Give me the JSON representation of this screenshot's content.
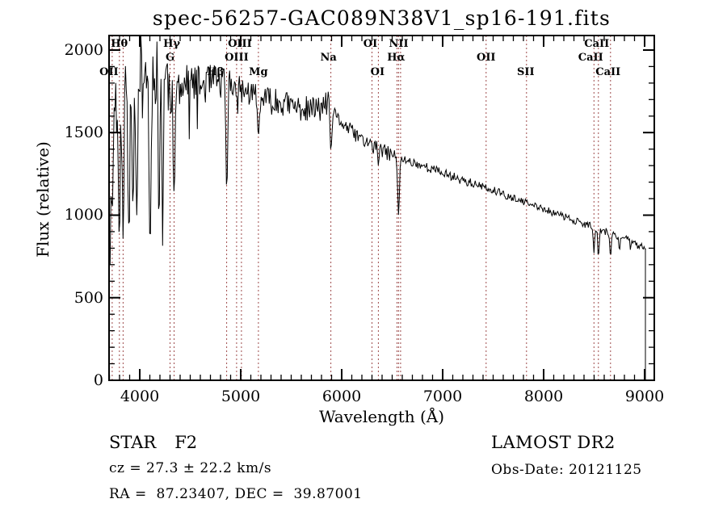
{
  "title": "spec-56257-GAC089N38V1_sp16-191.fits",
  "annotations": {
    "object_class": "STAR",
    "subclass": "F2",
    "cz_line": "cz = 27.3 ± 22.2 km/s",
    "radec_line": "RA =  87.23407, DEC =  39.87001",
    "survey": "LAMOST DR2",
    "obsdate_line": "Obs-Date: 20121125"
  },
  "chart_data": {
    "type": "line",
    "title": "spec-56257-GAC089N38V1_sp16-191.fits",
    "xlabel": "Wavelength (Å)",
    "ylabel": "Flux (relative)",
    "xlim": [
      3696,
      9096
    ],
    "ylim": [
      0,
      2088
    ],
    "grid": false,
    "line_color": "#000000",
    "marker_color": "#9e4b4b",
    "x_ticks": [
      {
        "value": 4000,
        "label": "4000"
      },
      {
        "value": 5000,
        "label": "5000"
      },
      {
        "value": 6000,
        "label": "6000"
      },
      {
        "value": 7000,
        "label": "7000"
      },
      {
        "value": 8000,
        "label": "8000"
      },
      {
        "value": 9000,
        "label": "9000"
      }
    ],
    "y_ticks": [
      {
        "value": 0,
        "label": "0"
      },
      {
        "value": 500,
        "label": "500"
      },
      {
        "value": 1000,
        "label": "1000"
      },
      {
        "value": 1500,
        "label": "1500"
      },
      {
        "value": 2000,
        "label": "2000"
      }
    ],
    "x_minor_step": 100,
    "y_minor_step": 100,
    "spectral_lines": [
      {
        "label": "OII",
        "wl": 3727,
        "row": 3,
        "dx": -4
      },
      {
        "label": "Hθ",
        "wl": 3798,
        "row": 1,
        "dx": 0
      },
      {
        "label": "",
        "wl": 3835,
        "row": 0,
        "dx": 0
      },
      {
        "label": "G",
        "wl": 4300,
        "row": 2,
        "dx": 0
      },
      {
        "label": "Hγ",
        "wl": 4340,
        "row": 1,
        "dx": -3
      },
      {
        "label": "Hβ",
        "wl": 4861,
        "row": 3,
        "dx": -14
      },
      {
        "label": "OIII",
        "wl": 4959,
        "row": 2,
        "dx": 0
      },
      {
        "label": "OIII",
        "wl": 5007,
        "row": 1,
        "dx": -2
      },
      {
        "label": "Mg",
        "wl": 5175,
        "row": 3,
        "dx": 0
      },
      {
        "label": "Na",
        "wl": 5893,
        "row": 2,
        "dx": -3
      },
      {
        "label": "OI",
        "wl": 6300,
        "row": 1,
        "dx": -2
      },
      {
        "label": "OI",
        "wl": 6363,
        "row": 3,
        "dx": -1
      },
      {
        "label": "NII",
        "wl": 6548,
        "row": 1,
        "dx": 2
      },
      {
        "label": "Hα",
        "wl": 6563,
        "row": 2,
        "dx": -3
      },
      {
        "label": "",
        "wl": 6583,
        "row": 0,
        "dx": 0
      },
      {
        "label": "OII",
        "wl": 7430,
        "row": 2,
        "dx": 0
      },
      {
        "label": "SII",
        "wl": 7830,
        "row": 3,
        "dx": -1
      },
      {
        "label": "CaII",
        "wl": 8498,
        "row": 2,
        "dx": -4
      },
      {
        "label": "CaII",
        "wl": 8542,
        "row": 1,
        "dx": -2
      },
      {
        "label": "CaII",
        "wl": 8662,
        "row": 3,
        "dx": -3
      }
    ],
    "continuum": {
      "wl": [
        3698,
        3720,
        3760,
        3800,
        3840,
        3880,
        3920,
        3960,
        4000,
        4060,
        4120,
        4180,
        4240,
        4300,
        4360,
        4420,
        4480,
        4560,
        4640,
        4720,
        4800,
        4880,
        4960,
        5040,
        5120,
        5200,
        5300,
        5400,
        5500,
        5600,
        5700,
        5800,
        5860,
        5900,
        5950,
        6000,
        6100,
        6200,
        6300,
        6400,
        6500,
        6600,
        6700,
        6800,
        6900,
        7000,
        7100,
        7200,
        7300,
        7400,
        7500,
        7600,
        7700,
        7800,
        7900,
        8000,
        8100,
        8200,
        8300,
        8400,
        8500,
        8600,
        8700,
        8800,
        8900,
        8990,
        9008
      ],
      "flux": [
        1500,
        1650,
        1700,
        1760,
        1780,
        1800,
        1820,
        1830,
        1840,
        1880,
        1900,
        1870,
        1830,
        1800,
        1780,
        1790,
        1800,
        1790,
        1790,
        1800,
        1800,
        1790,
        1770,
        1750,
        1730,
        1710,
        1690,
        1680,
        1660,
        1645,
        1640,
        1650,
        1680,
        1630,
        1590,
        1560,
        1505,
        1460,
        1420,
        1390,
        1365,
        1340,
        1320,
        1300,
        1278,
        1256,
        1234,
        1212,
        1190,
        1168,
        1146,
        1124,
        1102,
        1080,
        1058,
        1036,
        1014,
        992,
        970,
        948,
        926,
        904,
        882,
        860,
        830,
        805,
        800
      ]
    },
    "absorption_dips": [
      {
        "wl": 3702,
        "bottom": 600,
        "sigma": 4
      },
      {
        "wl": 3727,
        "bottom": 1000,
        "sigma": 8
      },
      {
        "wl": 3798,
        "bottom": 820,
        "sigma": 8
      },
      {
        "wl": 3835,
        "bottom": 850,
        "sigma": 8
      },
      {
        "wl": 3889,
        "bottom": 950,
        "sigma": 8
      },
      {
        "wl": 3933,
        "bottom": 1050,
        "sigma": 8
      },
      {
        "wl": 3970,
        "bottom": 1000,
        "sigma": 8
      },
      {
        "wl": 4102,
        "bottom": 800,
        "sigma": 10
      },
      {
        "wl": 4190,
        "bottom": 840,
        "sigma": 6
      },
      {
        "wl": 4227,
        "bottom": 800,
        "sigma": 6
      },
      {
        "wl": 4340,
        "bottom": 1130,
        "sigma": 10
      },
      {
        "wl": 4861,
        "bottom": 1150,
        "sigma": 9
      },
      {
        "wl": 5175,
        "bottom": 1480,
        "sigma": 10
      },
      {
        "wl": 5893,
        "bottom": 1390,
        "sigma": 9
      },
      {
        "wl": 6363,
        "bottom": 1300,
        "sigma": 5
      },
      {
        "wl": 6563,
        "bottom": 1000,
        "sigma": 9
      },
      {
        "wl": 8498,
        "bottom": 770,
        "sigma": 7
      },
      {
        "wl": 8542,
        "bottom": 740,
        "sigma": 7
      },
      {
        "wl": 8662,
        "bottom": 745,
        "sigma": 7
      },
      {
        "wl": 8750,
        "bottom": 780,
        "sigma": 6
      }
    ],
    "noise_regions": [
      {
        "from": 3696,
        "to": 4050,
        "amp": 290,
        "spike_p": 0.1,
        "spike_max": 900
      },
      {
        "from": 4050,
        "to": 4350,
        "amp": 210,
        "spike_p": 0.06,
        "spike_max": 800
      },
      {
        "from": 4350,
        "to": 4900,
        "amp": 115,
        "spike_p": 0.03,
        "spike_max": 350
      },
      {
        "from": 4900,
        "to": 5900,
        "amp": 80,
        "spike_p": 0.02,
        "spike_max": 200
      },
      {
        "from": 5900,
        "to": 6600,
        "amp": 45,
        "spike_p": 0.01,
        "spike_max": 150
      },
      {
        "from": 6600,
        "to": 7600,
        "amp": 28,
        "spike_p": 0.0,
        "spike_max": 0
      },
      {
        "from": 7600,
        "to": 9010,
        "amp": 22,
        "spike_p": 0.01,
        "spike_max": 80
      }
    ],
    "cutoff_wl": 9008,
    "seed": 11
  }
}
